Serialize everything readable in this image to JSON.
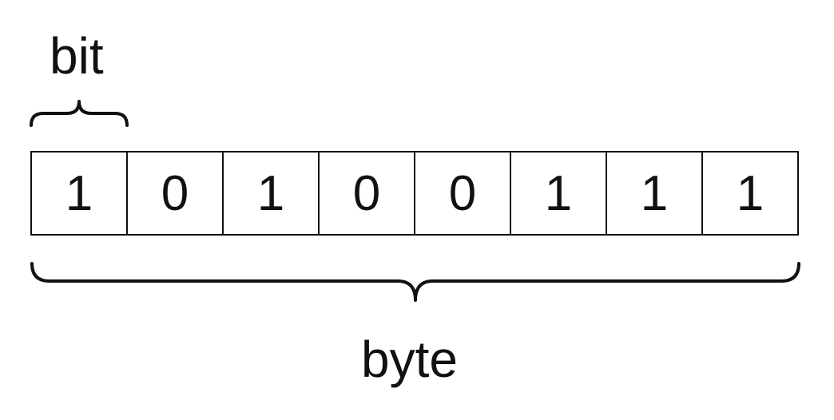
{
  "labels": {
    "bit": "bit",
    "byte": "byte"
  },
  "bits": [
    "1",
    "0",
    "1",
    "0",
    "0",
    "1",
    "1",
    "1"
  ],
  "colors": {
    "stroke": "#111111",
    "background": "#ffffff"
  }
}
